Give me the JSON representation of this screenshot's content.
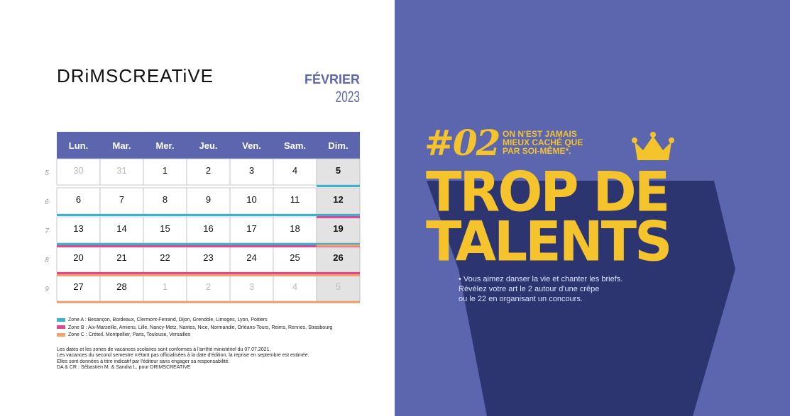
{
  "brand": "DRiMSCREATiVE",
  "month": "FÉVRIER",
  "year": "2023",
  "weekdays": [
    "Lun.",
    "Mar.",
    "Mer.",
    "Jeu.",
    "Ven.",
    "Sam.",
    "Dim."
  ],
  "weeks": [
    {
      "number": "5",
      "days": [
        "30",
        "31",
        "1",
        "2",
        "3",
        "4",
        "5"
      ]
    },
    {
      "number": "6",
      "days": [
        "6",
        "7",
        "8",
        "9",
        "10",
        "11",
        "12"
      ]
    },
    {
      "number": "7",
      "days": [
        "13",
        "14",
        "15",
        "16",
        "17",
        "18",
        "19"
      ]
    },
    {
      "number": "8",
      "days": [
        "20",
        "21",
        "22",
        "23",
        "24",
        "25",
        "26"
      ]
    },
    {
      "number": "9",
      "days": [
        "27",
        "28",
        "1",
        "2",
        "3",
        "4",
        "5"
      ]
    }
  ],
  "zones": [
    {
      "color": "#3bb3cf",
      "text": "Zone A : Besançon, Bordeaux, Clermont-Ferrand, Dijon, Grenoble, Limoges, Lyon, Poitiers"
    },
    {
      "color": "#e0478f",
      "text": "Zone B : Aix-Marseille, Amiens, Lille, Nancy-Metz, Nantes, Nice, Normandie, Orléans-Tours, Reims, Rennes, Strasbourg"
    },
    {
      "color": "#f0a36a",
      "text": "Zone C : Créteil, Montpellier, Paris, Toulouse, Versailles"
    }
  ],
  "notes": [
    "Les dates et les zones de vacances scolaires sont conformes à l'arrêté ministériel du 07.07.2021.",
    "Les vacances du second semestre n'étant pas officialisées à la date d'édition, la reprise en septembre est estimée.",
    "Elles sont données à titre indicatif par l'éditeur sans engager sa responsabilité.",
    "DA & CR : Sébastien M. & Sandra L. pour DRIMSCREATIVE"
  ],
  "episode": "#02",
  "tagline": [
    "ON N'EST JAMAIS",
    "MIEUX CACHÉ QUE",
    "PAR SOI-MÊME*."
  ],
  "headline": [
    "TROP DE",
    "TALENTS"
  ],
  "body": [
    "• Vous aimez danser la vie et chanter les briefs.",
    "Révélez votre art le 2 autour d'une crêpe",
    "ou le 22 en organisant un concours."
  ]
}
